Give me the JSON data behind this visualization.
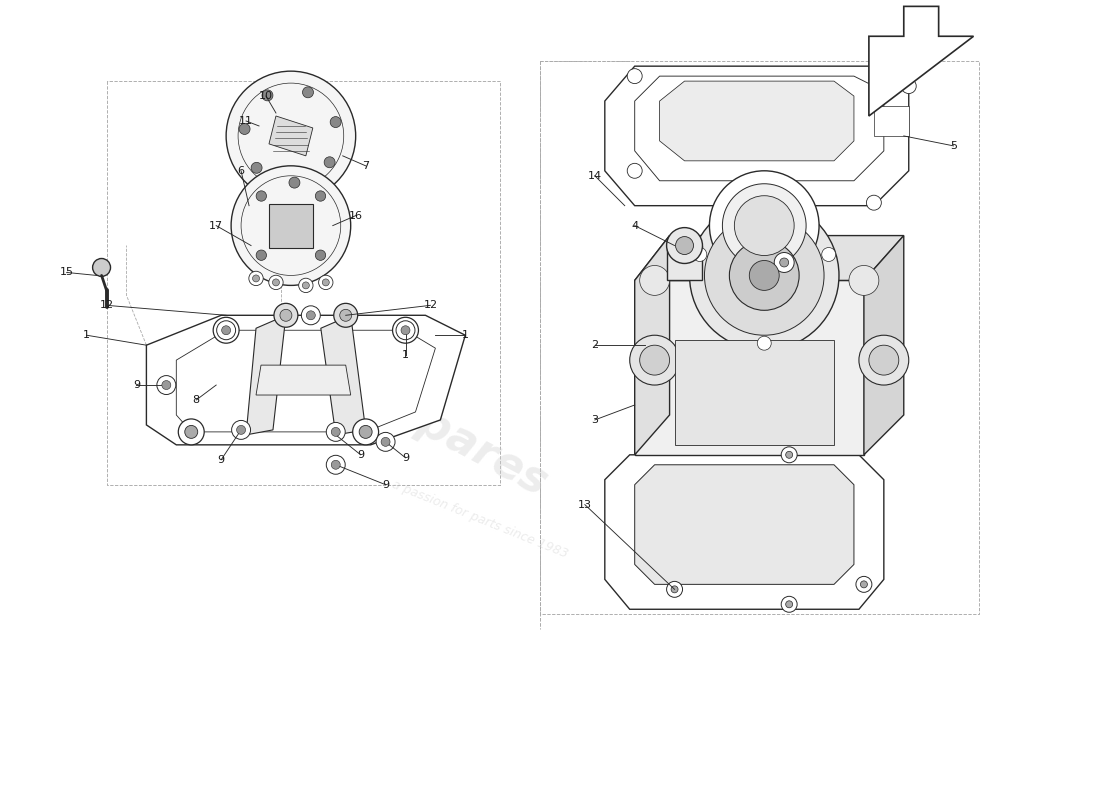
{
  "bg_color": "#ffffff",
  "lc": "#2a2a2a",
  "dc": "#aaaaaa",
  "wm_color": "#d0d0d0",
  "fig_w": 11.0,
  "fig_h": 8.0
}
